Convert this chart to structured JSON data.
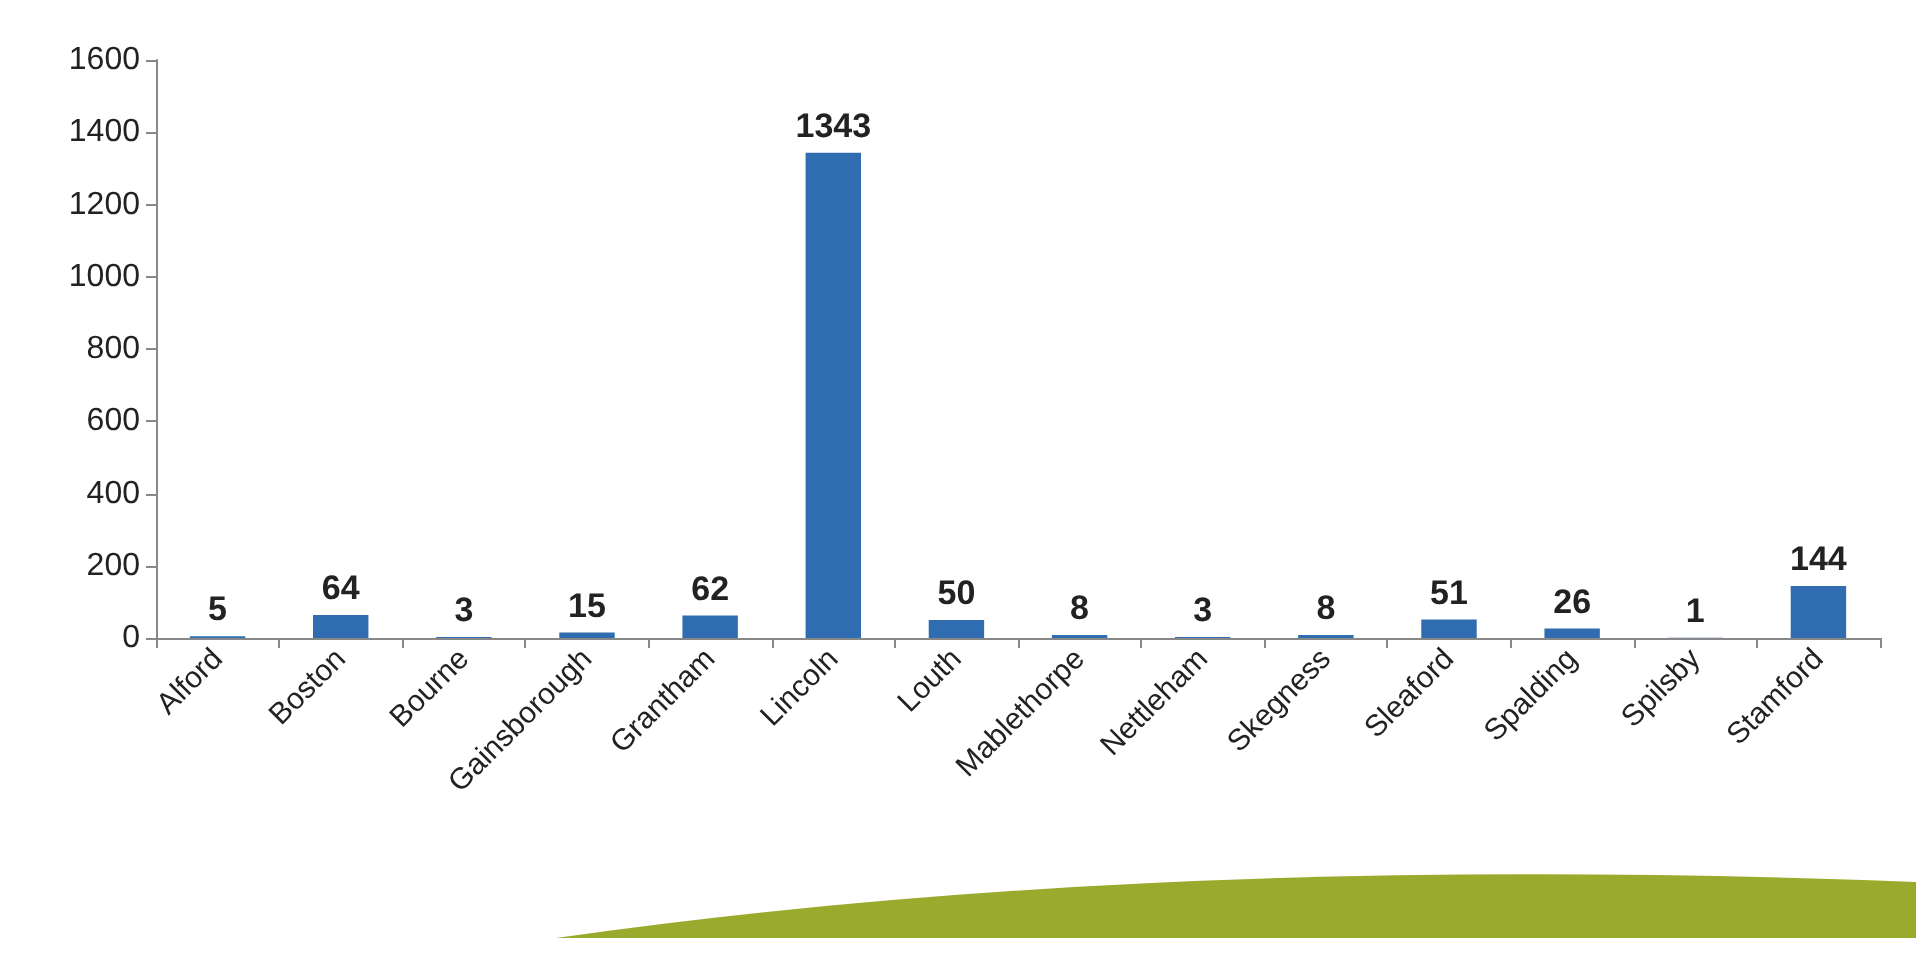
{
  "chart_data": {
    "type": "bar",
    "categories": [
      "Alford",
      "Boston",
      "Bourne",
      "Gainsborough",
      "Grantham",
      "Lincoln",
      "Louth",
      "Mablethorpe",
      "Nettleham",
      "Skegness",
      "Sleaford",
      "Spalding",
      "Spilsby",
      "Stamford"
    ],
    "values": [
      5,
      64,
      3,
      15,
      62,
      1343,
      50,
      8,
      3,
      8,
      51,
      26,
      1,
      144
    ],
    "color": "#2f6cb0",
    "ylim": [
      0,
      1600
    ],
    "yticks": [
      0,
      200,
      400,
      600,
      800,
      1000,
      1200,
      1400,
      1600
    ],
    "grid": false,
    "data_labels": true
  }
}
